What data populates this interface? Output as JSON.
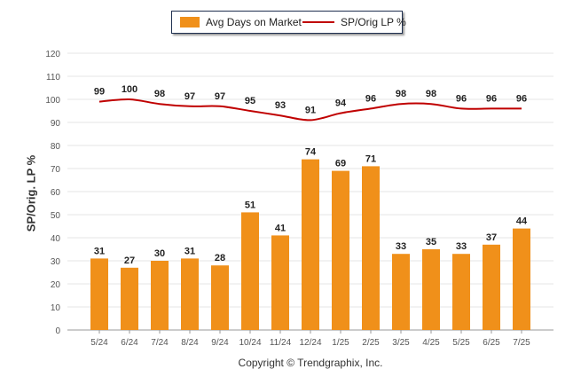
{
  "colors": {
    "bar": "#f0901a",
    "line": "#c00000",
    "grid": "#e6e6e6",
    "axis": "#999999"
  },
  "legend": {
    "bar_label": "Avg Days on Market",
    "line_label": "SP/Orig LP %"
  },
  "footer": {
    "copyright": "Copyright © Trendgraphix, Inc."
  },
  "chart_data": {
    "type": "bar",
    "ylabel": "SP/Orig. LP %",
    "ylim": [
      0,
      120
    ],
    "yticks": [
      0,
      10,
      20,
      30,
      40,
      50,
      60,
      70,
      80,
      90,
      100,
      110,
      120
    ],
    "grid": true,
    "legend_position": "top-center",
    "categories": [
      "5/24",
      "6/24",
      "7/24",
      "8/24",
      "9/24",
      "10/24",
      "11/24",
      "12/24",
      "1/25",
      "2/25",
      "3/25",
      "4/25",
      "5/25",
      "6/25",
      "7/25"
    ],
    "series": [
      {
        "name": "Avg Days on Market",
        "type": "bar",
        "values": [
          31,
          27,
          30,
          31,
          28,
          51,
          41,
          74,
          69,
          71,
          33,
          35,
          33,
          37,
          44
        ]
      },
      {
        "name": "SP/Orig LP %",
        "type": "line",
        "values": [
          99,
          100,
          98,
          97,
          97,
          95,
          93,
          91,
          94,
          96,
          98,
          98,
          96,
          96,
          96
        ]
      }
    ]
  }
}
